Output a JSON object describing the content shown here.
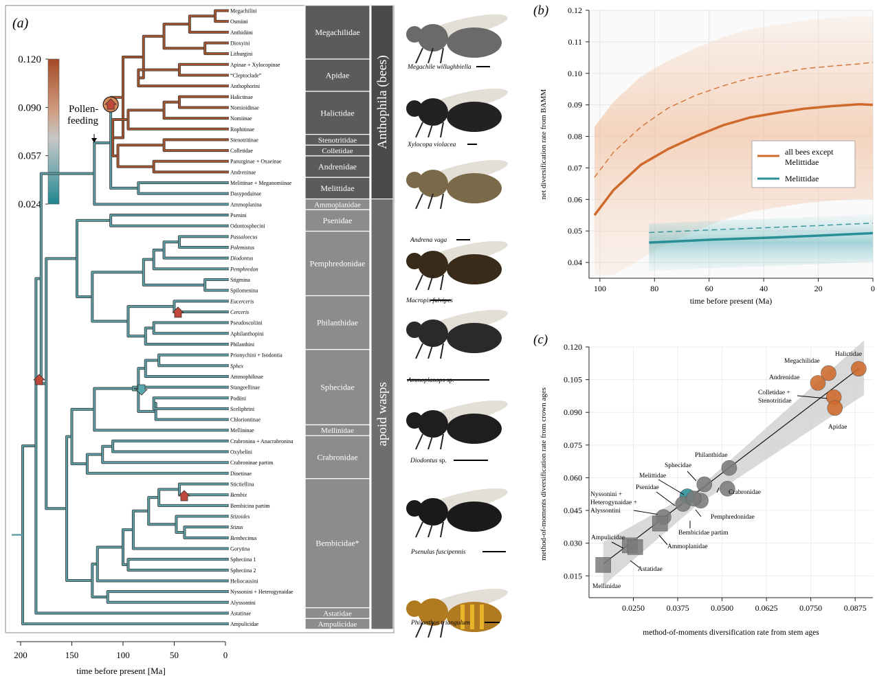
{
  "panel_labels": {
    "a": "(a)",
    "b": "(b)",
    "c": "(c)"
  },
  "colors": {
    "bee": "#cf6a2c",
    "melittid": "#2a8e97",
    "grey_point": "#7b7b7b",
    "family_box": "#8c8c8c",
    "bees_bar": "#555555",
    "wasps_bar": "#6e6e6e",
    "teal_branch": "#5b9ea3",
    "brown_branch": "#a6552f"
  },
  "tree": {
    "colorbar": {
      "ticks": [
        "0.120",
        "0.090",
        "0.057",
        "0.024"
      ]
    },
    "pollen_label": "Pollen-\nfeeding",
    "axis": {
      "ticks": [
        "200",
        "150",
        "100",
        "50",
        "0"
      ],
      "label": "time before present [Ma]"
    },
    "tips": [
      {
        "name": "Megachilini",
        "italic": false
      },
      {
        "name": "Osmiini",
        "italic": false
      },
      {
        "name": "Anthidiini",
        "italic": false
      },
      {
        "name": "Dioxyini",
        "italic": false
      },
      {
        "name": "Lithurgini",
        "italic": false
      },
      {
        "name": "Apinae + Xylocopinae",
        "italic": false
      },
      {
        "name": "“Cleptoclade”",
        "italic": false
      },
      {
        "name": "Anthophorini",
        "italic": false
      },
      {
        "name": "Halictinae",
        "italic": false
      },
      {
        "name": "Nomioidinae",
        "italic": false
      },
      {
        "name": "Nomiinae",
        "italic": false
      },
      {
        "name": "Rophitinae",
        "italic": false
      },
      {
        "name": "Stenotritinae",
        "italic": false
      },
      {
        "name": "Colletidae",
        "italic": false
      },
      {
        "name": "Panurginae + Oxaeinae",
        "italic": false
      },
      {
        "name": "Andreninae",
        "italic": false
      },
      {
        "name": "Melittinae + Meganomiinae",
        "italic": false
      },
      {
        "name": "Dasypodainae",
        "italic": false
      },
      {
        "name": "Ammoplanina",
        "italic": false
      },
      {
        "name": "Psenini",
        "italic": false
      },
      {
        "name": "Odontosphecini",
        "italic": false
      },
      {
        "name": "Passaloecus",
        "italic": true
      },
      {
        "name": "Polemistus",
        "italic": true
      },
      {
        "name": "Diodontus",
        "italic": true
      },
      {
        "name": "Pemphredon",
        "italic": true
      },
      {
        "name": "Stigmina",
        "italic": false
      },
      {
        "name": "Spilomenina",
        "italic": false
      },
      {
        "name": "Eucerceris",
        "italic": true
      },
      {
        "name": "Cerceris",
        "italic": true
      },
      {
        "name": "Pseudoscoliini",
        "italic": false
      },
      {
        "name": "Aphilanthopini",
        "italic": false
      },
      {
        "name": "Philanthini",
        "italic": false
      },
      {
        "name": "Prionychini + Isodontia",
        "italic": false
      },
      {
        "name": "Sphex",
        "italic": true
      },
      {
        "name": "Ammophilinae",
        "italic": false
      },
      {
        "name": "Stangeellinae",
        "italic": false
      },
      {
        "name": "Podiini",
        "italic": false
      },
      {
        "name": "Sceliphrini",
        "italic": false
      },
      {
        "name": "Chloriontinae",
        "italic": false
      },
      {
        "name": "Mellininae",
        "italic": false
      },
      {
        "name": "Crabronina + Anacrabronina",
        "italic": false
      },
      {
        "name": "Oxybelini",
        "italic": false
      },
      {
        "name": "Crabroninae partim",
        "italic": false
      },
      {
        "name": "Dinetinae",
        "italic": false
      },
      {
        "name": "Stictiellina",
        "italic": false
      },
      {
        "name": "Bembix",
        "italic": true
      },
      {
        "name": "Bembicina partim",
        "italic": false
      },
      {
        "name": "Stizoides",
        "italic": true
      },
      {
        "name": "Stizus",
        "italic": true
      },
      {
        "name": "Bembecinus",
        "italic": true
      },
      {
        "name": "Gorytina",
        "italic": false
      },
      {
        "name": "Spheciina 1",
        "italic": false
      },
      {
        "name": "Spheciina 2",
        "italic": false
      },
      {
        "name": "Heliocausini",
        "italic": false
      },
      {
        "name": "Nyssonini + Heterogynaidae",
        "italic": false
      },
      {
        "name": "Alyssontini",
        "italic": false
      },
      {
        "name": "Astatinae",
        "italic": false
      },
      {
        "name": "Ampulicidae",
        "italic": false
      }
    ],
    "families": [
      {
        "name": "Megachilidae",
        "from": 0,
        "to": 4
      },
      {
        "name": "Apidae",
        "from": 5,
        "to": 7
      },
      {
        "name": "Halictidae",
        "from": 8,
        "to": 11
      },
      {
        "name": "Stenotritidae",
        "from": 12,
        "to": 12
      },
      {
        "name": "Colletidae",
        "from": 13,
        "to": 13
      },
      {
        "name": "Andrenidae",
        "from": 14,
        "to": 15
      },
      {
        "name": "Melittidae",
        "from": 16,
        "to": 17
      },
      {
        "name": "Ammoplanidae",
        "from": 18,
        "to": 18
      },
      {
        "name": "Psenidae",
        "from": 19,
        "to": 20
      },
      {
        "name": "Pemphredonidae",
        "from": 21,
        "to": 26
      },
      {
        "name": "Philanthidae",
        "from": 27,
        "to": 31
      },
      {
        "name": "Sphecidae",
        "from": 32,
        "to": 38
      },
      {
        "name": "Mellinidae",
        "from": 39,
        "to": 39
      },
      {
        "name": "Crabronidae",
        "from": 40,
        "to": 43
      },
      {
        "name": "Bembicidae*",
        "from": 44,
        "to": 55
      },
      {
        "name": "Astatidae",
        "from": 56,
        "to": 56
      },
      {
        "name": "Ampulicidae",
        "from": 57,
        "to": 57
      }
    ],
    "clades": [
      {
        "name": "Anthophila (bees)",
        "from": 0,
        "to": 17
      },
      {
        "name": "apoid wasps",
        "from": 18,
        "to": 57
      }
    ]
  },
  "photos": [
    {
      "label": "Megachile willughbiella",
      "italic": true
    },
    {
      "label": "Xylocopa violacea",
      "italic": true
    },
    {
      "label": "Andrena vaga",
      "italic": true
    },
    {
      "label": "Macropis fulvipes",
      "italic": true
    },
    {
      "label": "Ammoplanops",
      "suffix": " sp.",
      "italic": true
    },
    {
      "label": "Diodontus",
      "suffix": " sp.",
      "italic": true
    },
    {
      "label": "Psenulus fuscipennis",
      "italic": true
    },
    {
      "label": "Philanthus triangulum",
      "italic": true
    }
  ],
  "chart_data": [
    {
      "panel": "b",
      "type": "line",
      "xlabel": "time before present (Ma)",
      "ylabel": "net diversification rate from BAMM",
      "xlim": [
        104,
        0
      ],
      "ylim": [
        0.035,
        0.12
      ],
      "x_ticks": [
        "100",
        "80",
        "60",
        "40",
        "20",
        "0"
      ],
      "y_ticks": [
        "0.04",
        "0.05",
        "0.06",
        "0.07",
        "0.08",
        "0.09",
        "0.10",
        "0.11",
        "0.12"
      ],
      "grid": true,
      "legend_position": "right",
      "series": [
        {
          "name": "all bees except Melittidae",
          "color": "#cf6a2c",
          "x": [
            102,
            95,
            85,
            75,
            65,
            55,
            45,
            35,
            25,
            15,
            5,
            0
          ],
          "y": [
            0.055,
            0.063,
            0.071,
            0.076,
            0.08,
            0.0835,
            0.086,
            0.0875,
            0.0888,
            0.0896,
            0.0902,
            0.09
          ],
          "dashed_x": [
            102,
            95,
            85,
            75,
            65,
            55,
            45,
            35,
            25,
            15,
            5,
            0
          ],
          "dashed_y": [
            0.067,
            0.075,
            0.083,
            0.089,
            0.093,
            0.096,
            0.0985,
            0.1,
            0.1015,
            0.1023,
            0.103,
            0.1035
          ]
        },
        {
          "name": "Melittidae",
          "color": "#2a8e97",
          "x": [
            82,
            60,
            40,
            20,
            0
          ],
          "y": [
            0.0463,
            0.0472,
            0.0478,
            0.0485,
            0.0493
          ],
          "dashed_x": [
            82,
            60,
            40,
            20,
            0
          ],
          "dashed_y": [
            0.0495,
            0.0503,
            0.051,
            0.0517,
            0.0525
          ]
        }
      ]
    },
    {
      "panel": "c",
      "type": "scatter",
      "xlabel": "method-of-moments diversification rate from stem ages",
      "ylabel": "method-of-moments diversification rate from crown ages",
      "x_ticks": [
        "0.0250",
        "0.0375",
        "0.0500",
        "0.0625",
        "0.0750",
        "0.0875"
      ],
      "y_ticks": [
        "0.015",
        "0.030",
        "0.045",
        "0.060",
        "0.075",
        "0.090",
        "0.105",
        "0.120"
      ],
      "xlim": [
        0.0125,
        0.0925
      ],
      "ylim": [
        0.005,
        0.12
      ],
      "grid": true,
      "fit_line": {
        "x": [
          0.0165,
          0.0885
        ],
        "y": [
          0.0205,
          0.11
        ]
      },
      "points": [
        {
          "label": "Halictidae",
          "x": 0.0885,
          "y": 0.11,
          "group": "bee",
          "shape": "circle"
        },
        {
          "label": "Megachilidae",
          "x": 0.08,
          "y": 0.108,
          "group": "bee",
          "shape": "circle"
        },
        {
          "label": "Andrenidae",
          "x": 0.077,
          "y": 0.1035,
          "group": "bee",
          "shape": "circle"
        },
        {
          "label": "Colletidae + Stenotritidae",
          "x": 0.0815,
          "y": 0.097,
          "group": "bee",
          "shape": "circle"
        },
        {
          "label": "Apidae",
          "x": 0.0818,
          "y": 0.092,
          "group": "bee",
          "shape": "circle"
        },
        {
          "label": "Philanthidae",
          "x": 0.052,
          "y": 0.0645,
          "group": "wasp",
          "shape": "circle"
        },
        {
          "label": "Sphecidae",
          "x": 0.045,
          "y": 0.057,
          "group": "wasp",
          "shape": "circle"
        },
        {
          "label": "Crabronidae",
          "x": 0.0515,
          "y": 0.055,
          "group": "wasp",
          "shape": "circle"
        },
        {
          "label": "Melittidae",
          "x": 0.0402,
          "y": 0.0515,
          "group": "melittid",
          "shape": "circle"
        },
        {
          "label": "Psenidae",
          "x": 0.039,
          "y": 0.048,
          "group": "wasp",
          "shape": "circle"
        },
        {
          "label": "Pemphredonidae",
          "x": 0.044,
          "y": 0.0495,
          "group": "wasp",
          "shape": "circle"
        },
        {
          "label": "Bembicidae partim",
          "x": 0.042,
          "y": 0.0505,
          "group": "wasp",
          "shape": "circle"
        },
        {
          "label": "Nyssonini + Heterogynaidae + Alyssontini",
          "x": 0.0335,
          "y": 0.042,
          "group": "wasp",
          "shape": "circle"
        },
        {
          "label": "Ammoplanidae",
          "x": 0.0325,
          "y": 0.039,
          "group": "wasp",
          "shape": "square"
        },
        {
          "label": "Ampulicidae",
          "x": 0.024,
          "y": 0.029,
          "group": "wasp",
          "shape": "square"
        },
        {
          "label": "Astatidae",
          "x": 0.0255,
          "y": 0.0282,
          "group": "wasp",
          "shape": "square"
        },
        {
          "label": "Mellinidae",
          "x": 0.0165,
          "y": 0.02,
          "group": "wasp",
          "shape": "square"
        }
      ]
    }
  ]
}
